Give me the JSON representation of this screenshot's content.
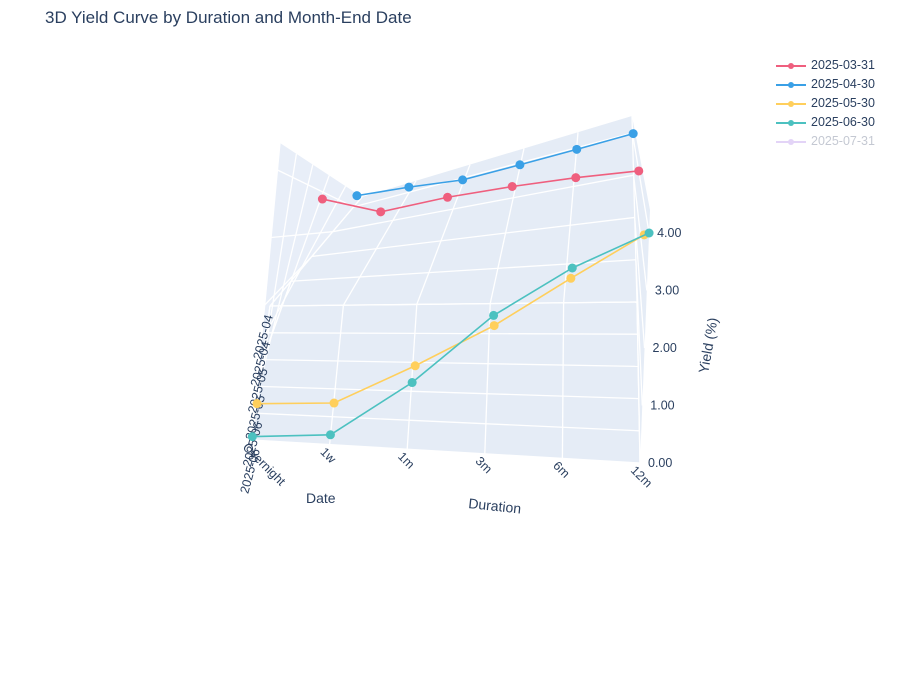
{
  "chart_data": {
    "type": "line",
    "title": "3D Yield Curve by Duration and Month-End Date",
    "xlabel": "Duration",
    "ylabel": "Date",
    "zlabel": "Yield (%)",
    "durations": [
      "Overnight",
      "1w",
      "1m",
      "3m",
      "6m",
      "12m"
    ],
    "date_ticks": [
      "2025-06",
      "2025-06",
      "2025-05",
      "2025-05",
      "2025-04",
      "2025-04"
    ],
    "z_ticks": [
      "0.00",
      "1.00",
      "2.00",
      "3.00",
      "4.00"
    ],
    "zlim": [
      0,
      4.4
    ],
    "legend_position": "top-right",
    "series": [
      {
        "name": "2025-03-31",
        "color": "#ef5f7e",
        "visible": true,
        "values": [
          3.85,
          3.45,
          3.7,
          3.85,
          3.95,
          4.0
        ]
      },
      {
        "name": "2025-04-30",
        "color": "#3aa0e6",
        "visible": true,
        "values": [
          4.35,
          4.15,
          3.95,
          4.0,
          4.05,
          4.1
        ]
      },
      {
        "name": "2025-05-30",
        "color": "#ffcf5c",
        "visible": true,
        "values": [
          0.05,
          0.12,
          0.85,
          1.65,
          2.6,
          3.5
        ]
      },
      {
        "name": "2025-06-30",
        "color": "#4cc1c0",
        "visible": true,
        "values": [
          0.05,
          0.15,
          1.05,
          2.25,
          3.2,
          4.0
        ]
      },
      {
        "name": "2025-07-31",
        "color": "#c8aaf0",
        "visible": false,
        "values": []
      }
    ]
  }
}
